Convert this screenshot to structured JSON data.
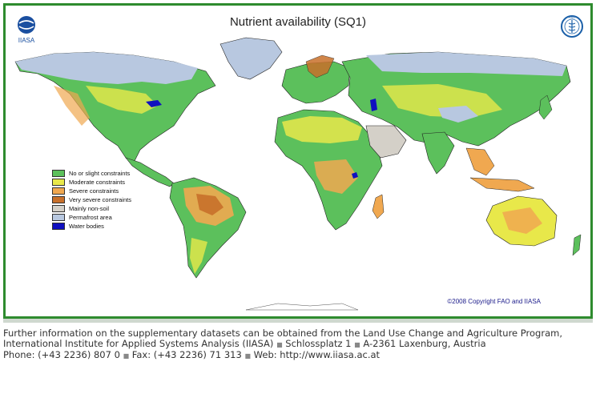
{
  "map": {
    "title": "Nutrient availability (SQ1)",
    "copyright": "©2008 Copyright FAO and IIASA",
    "logos": {
      "left": "iiasa-logo",
      "left_text": "IIASA",
      "right": "fao-logo",
      "right_text": "FAO"
    },
    "colors": {
      "frame": "#2e8b2e",
      "ocean": "#ffffff"
    }
  },
  "legend": {
    "items": [
      {
        "label": "No or slight constraints",
        "color": "#5cc05c"
      },
      {
        "label": "Moderate constraints",
        "color": "#e8e84a"
      },
      {
        "label": "Severe constraints",
        "color": "#f0a850"
      },
      {
        "label": "Very severe constraints",
        "color": "#c8702a"
      },
      {
        "label": "Mainly non-soil",
        "color": "#d4d0c8"
      },
      {
        "label": "Permafrost area",
        "color": "#b8c8e0"
      },
      {
        "label": "Water bodies",
        "color": "#1010c0"
      }
    ]
  },
  "footer": {
    "line1": "Further information on the supplementary datasets can be obtained from the Land Use Change and Agriculture Program,",
    "line2a": "International Institute for Applied Systems Analysis (IIASA)",
    "line2b": "Schlossplatz 1",
    "line2c": "A-2361 Laxenburg, Austria",
    "line3a": "Phone: (+43 2236) 807 0",
    "line3b": "Fax: (+43 2236) 71 313",
    "line3c": "Web: http://www.iiasa.ac.at",
    "bullet": "■"
  }
}
